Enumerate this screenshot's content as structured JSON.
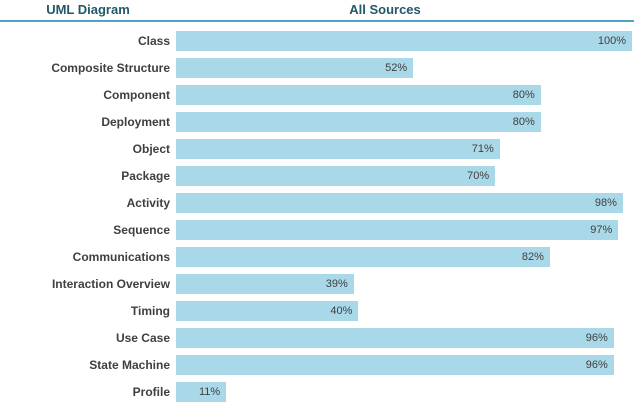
{
  "header": {
    "left": "UML Diagram",
    "right": "All Sources"
  },
  "colors": {
    "bar_fill": "#a9d8e8",
    "header_text": "#215968",
    "divider_line": "#4ba3c7",
    "category_text": "#3f3f3f",
    "value_text": "#404040",
    "background": "#ffffff"
  },
  "chart_data": {
    "type": "bar",
    "orientation": "horizontal",
    "title": "All Sources",
    "category_column_header": "UML Diagram",
    "categories": [
      "Class",
      "Composite Structure",
      "Component",
      "Deployment",
      "Object",
      "Package",
      "Activity",
      "Sequence",
      "Communications",
      "Interaction Overview",
      "Timing",
      "Use Case",
      "State Machine",
      "Profile"
    ],
    "values": [
      100,
      52,
      80,
      80,
      71,
      70,
      98,
      97,
      82,
      39,
      40,
      96,
      96,
      11
    ],
    "value_labels": [
      "100%",
      "52%",
      "80%",
      "80%",
      "71%",
      "70%",
      "98%",
      "97%",
      "82%",
      "39%",
      "40%",
      "96%",
      "96%",
      "11%"
    ],
    "xlabel": "",
    "ylabel": "",
    "xlim": [
      0,
      100
    ],
    "grid": false,
    "legend_position": "none",
    "value_label_position": "inside-end"
  }
}
